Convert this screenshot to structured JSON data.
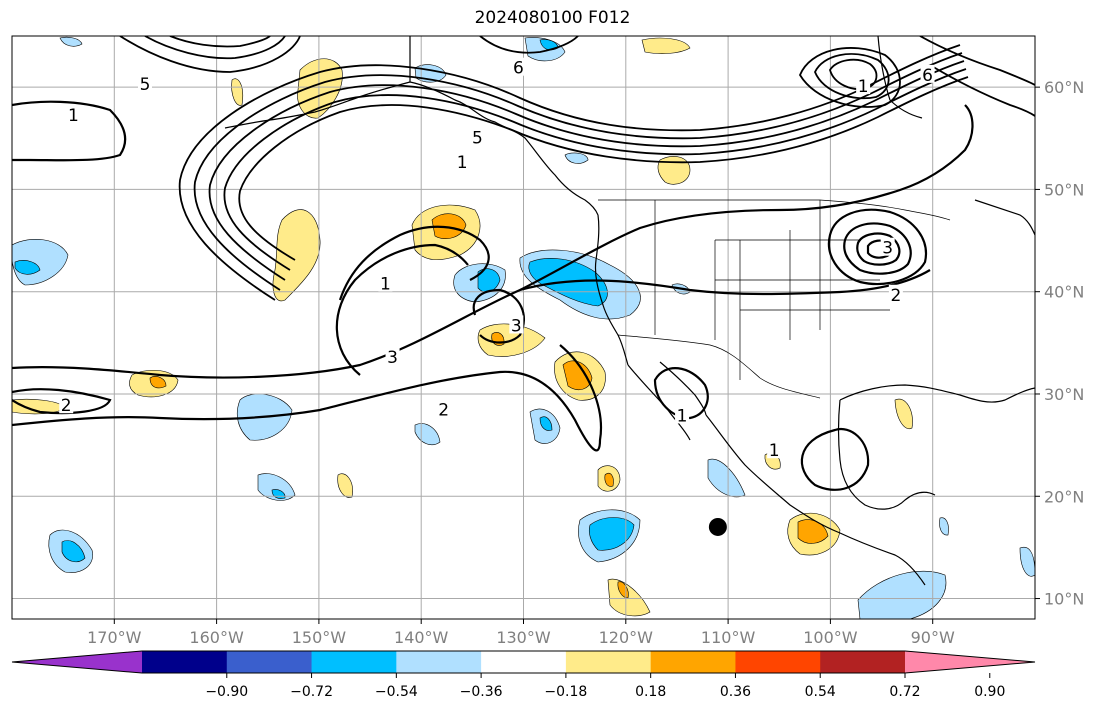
{
  "title": "2024080100 F012",
  "map": {
    "projection": "plate-carree",
    "lon_range": [
      -180,
      -80
    ],
    "lat_range": [
      8,
      65
    ],
    "lon_ticks": [
      {
        "value": -170,
        "label": "170°W"
      },
      {
        "value": -160,
        "label": "160°W"
      },
      {
        "value": -150,
        "label": "150°W"
      },
      {
        "value": -140,
        "label": "140°W"
      },
      {
        "value": -130,
        "label": "130°W"
      },
      {
        "value": -120,
        "label": "120°W"
      },
      {
        "value": -110,
        "label": "110°W"
      },
      {
        "value": -100,
        "label": "100°W"
      },
      {
        "value": -90,
        "label": "90°W"
      }
    ],
    "lat_ticks": [
      {
        "value": 10,
        "label": "10°N"
      },
      {
        "value": 20,
        "label": "20°N"
      },
      {
        "value": 30,
        "label": "30°N"
      },
      {
        "value": 40,
        "label": "40°N"
      },
      {
        "value": 50,
        "label": "50°N"
      },
      {
        "value": 60,
        "label": "60°N"
      }
    ],
    "grid": true,
    "tick_label_color": "#808080",
    "marker": {
      "lon": -111,
      "lat": 17,
      "shape": "filled-circle",
      "color": "#000000"
    },
    "contour_labels": [
      {
        "text": "1",
        "lon": -174,
        "lat": 57.3
      },
      {
        "text": "1",
        "lon": -136,
        "lat": 52.7
      },
      {
        "text": "1",
        "lon": -96.8,
        "lat": 60.1
      },
      {
        "text": "1",
        "lon": -143.5,
        "lat": 40.8
      },
      {
        "text": "1",
        "lon": -105.5,
        "lat": 24.5
      },
      {
        "text": "1",
        "lon": -114.5,
        "lat": 27.9
      },
      {
        "text": "2",
        "lon": -174.7,
        "lat": 28.9
      },
      {
        "text": "2",
        "lon": -137.8,
        "lat": 28.5
      },
      {
        "text": "2",
        "lon": -93.6,
        "lat": 39.7
      },
      {
        "text": "3",
        "lon": -142.8,
        "lat": 33.6
      },
      {
        "text": "3",
        "lon": -130.7,
        "lat": 36.7
      },
      {
        "text": "3",
        "lon": -94.4,
        "lat": 44.3
      },
      {
        "text": "5",
        "lon": -167,
        "lat": 60.3
      },
      {
        "text": "5",
        "lon": -134.5,
        "lat": 55.1
      },
      {
        "text": "6",
        "lon": -130.5,
        "lat": 61.9
      },
      {
        "text": "6",
        "lon": -90.5,
        "lat": 61.2
      }
    ]
  },
  "colorbar": {
    "levels": [
      -0.9,
      -0.72,
      -0.54,
      -0.36,
      -0.18,
      0.18,
      0.36,
      0.54,
      0.72,
      0.9
    ],
    "tick_labels": [
      "−0.90",
      "−0.72",
      "−0.54",
      "−0.36",
      "−0.18",
      "0.18",
      "0.36",
      "0.54",
      "0.72",
      "0.90"
    ],
    "colors": [
      "#9932cc",
      "#00008b",
      "#3a5fcd",
      "#00bfff",
      "#b0e0ff",
      "#ffffff",
      "#ffeb8a",
      "#ffa500",
      "#ff4500",
      "#b22222",
      "#ff88aa"
    ],
    "extend": "both"
  }
}
